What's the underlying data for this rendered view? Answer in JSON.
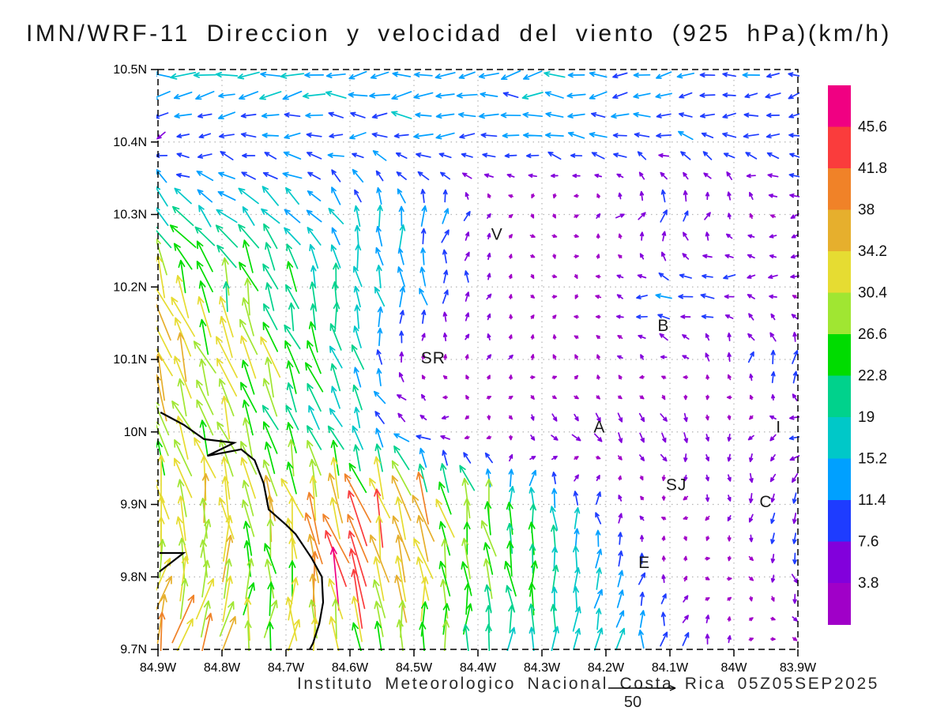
{
  "title": "IMN/WRF-11 Direccion y velocidad del viento (925 hPa)(km/h)",
  "footer": {
    "credit": "Instituto Meteorologico Nacional Costa Rica 05Z05SEP2025",
    "reference_value": "50"
  },
  "chart_data": {
    "type": "vector_field",
    "title": "IMN/WRF-11 Direccion y velocidad del viento (925 hPa)(km/h)",
    "units": "km/h",
    "level": "925 hPa",
    "grid": true,
    "lat_ticks": [
      "10.5N",
      "10.4N",
      "10.3N",
      "10.2N",
      "10.1N",
      "10N",
      "9.9N",
      "9.8N",
      "9.7N"
    ],
    "lon_ticks": [
      "84.9W",
      "84.8W",
      "84.7W",
      "84.6W",
      "84.5W",
      "84.4W",
      "84.3W",
      "84.2W",
      "84.1W",
      "84W",
      "83.9W"
    ],
    "lat_range": [
      9.7,
      10.5
    ],
    "lon_range_w": [
      83.9,
      84.9
    ],
    "colorbar": {
      "units": "km/h",
      "labels_top_to_bottom": [
        "45.6",
        "41.8",
        "38",
        "34.2",
        "30.4",
        "26.6",
        "22.8",
        "19",
        "15.2",
        "11.4",
        "7.6",
        "3.8"
      ],
      "colors_top_to_bottom": [
        "#F00082",
        "#FA3C3C",
        "#F08228",
        "#E6AF2D",
        "#E6DC32",
        "#A0E632",
        "#00DC00",
        "#00D28C",
        "#00C8C8",
        "#00A0FF",
        "#1E3CFF",
        "#8200DC",
        "#A000C8"
      ]
    },
    "wind_field": {
      "lats": [
        10.5,
        10.4,
        10.3,
        10.2,
        10.1,
        10.0,
        9.9,
        9.8,
        9.7
      ],
      "lons_w": [
        84.9,
        84.7,
        84.6,
        84.5,
        84.3,
        84.1,
        83.9
      ],
      "u_kmh": [
        [
          -17,
          -16,
          -15,
          -15,
          -14,
          -12,
          -10
        ],
        [
          -6,
          -11,
          -11,
          -12,
          -12,
          -10,
          -9
        ],
        [
          -13,
          -13,
          -5,
          3,
          2,
          5,
          -6
        ],
        [
          -10,
          -5,
          -3,
          -2,
          3,
          -12,
          -5
        ],
        [
          -12,
          -10,
          -4,
          1,
          1,
          -4,
          3
        ],
        [
          -10,
          -8,
          -6,
          -9,
          5,
          6,
          -9
        ],
        [
          -3,
          -8,
          -10,
          -10,
          0,
          -2,
          1
        ],
        [
          8,
          -3,
          -13,
          -6,
          1,
          2,
          1
        ],
        [
          10,
          4,
          0,
          0,
          1,
          1,
          2
        ]
      ],
      "v_kmh": [
        [
          -1,
          -2,
          -1,
          -1,
          -2,
          -1,
          -2
        ],
        [
          -2,
          0,
          0,
          1,
          2,
          3,
          1
        ],
        [
          14,
          13,
          14,
          15,
          -4,
          10,
          -1
        ],
        [
          28,
          21,
          17,
          14,
          -2,
          2,
          -1
        ],
        [
          33,
          26,
          19,
          3,
          4,
          2,
          12
        ],
        [
          29,
          22,
          16,
          2,
          -6,
          -7,
          -2
        ],
        [
          33,
          30,
          37,
          36,
          19,
          -2,
          -9
        ],
        [
          34,
          25,
          45,
          30,
          23,
          4,
          -8
        ],
        [
          34,
          31,
          26,
          24,
          20,
          12,
          -3
        ]
      ]
    },
    "labels_on_map": [
      {
        "text": "V",
        "lon_w": 84.37,
        "lat": 10.273
      },
      {
        "text": "B",
        "lon_w": 84.11,
        "lat": 10.147
      },
      {
        "text": "SR",
        "lon_w": 84.47,
        "lat": 10.102
      },
      {
        "text": "A",
        "lon_w": 84.21,
        "lat": 10.007
      },
      {
        "text": "I",
        "lon_w": 83.93,
        "lat": 10.007
      },
      {
        "text": "SJ",
        "lon_w": 84.09,
        "lat": 9.927
      },
      {
        "text": "C",
        "lon_w": 83.95,
        "lat": 9.904
      },
      {
        "text": "E",
        "lon_w": 84.14,
        "lat": 9.82
      }
    ],
    "coastline_lonlat_w": [
      [
        84.896,
        10.027
      ],
      [
        84.86,
        10.01
      ],
      [
        84.828,
        9.99
      ],
      [
        84.781,
        9.985
      ],
      [
        84.823,
        9.967
      ],
      [
        84.77,
        9.976
      ],
      [
        84.749,
        9.961
      ],
      [
        84.735,
        9.929
      ],
      [
        84.727,
        9.893
      ],
      [
        84.7,
        9.872
      ],
      [
        84.685,
        9.859
      ],
      [
        84.66,
        9.826
      ],
      [
        84.644,
        9.8
      ],
      [
        84.642,
        9.765
      ],
      [
        84.648,
        9.735
      ],
      [
        84.658,
        9.708
      ],
      [
        84.663,
        9.7
      ]
    ],
    "island_lonlat_w": [
      [
        84.898,
        9.833
      ],
      [
        84.86,
        9.833
      ],
      [
        84.898,
        9.807
      ]
    ]
  }
}
